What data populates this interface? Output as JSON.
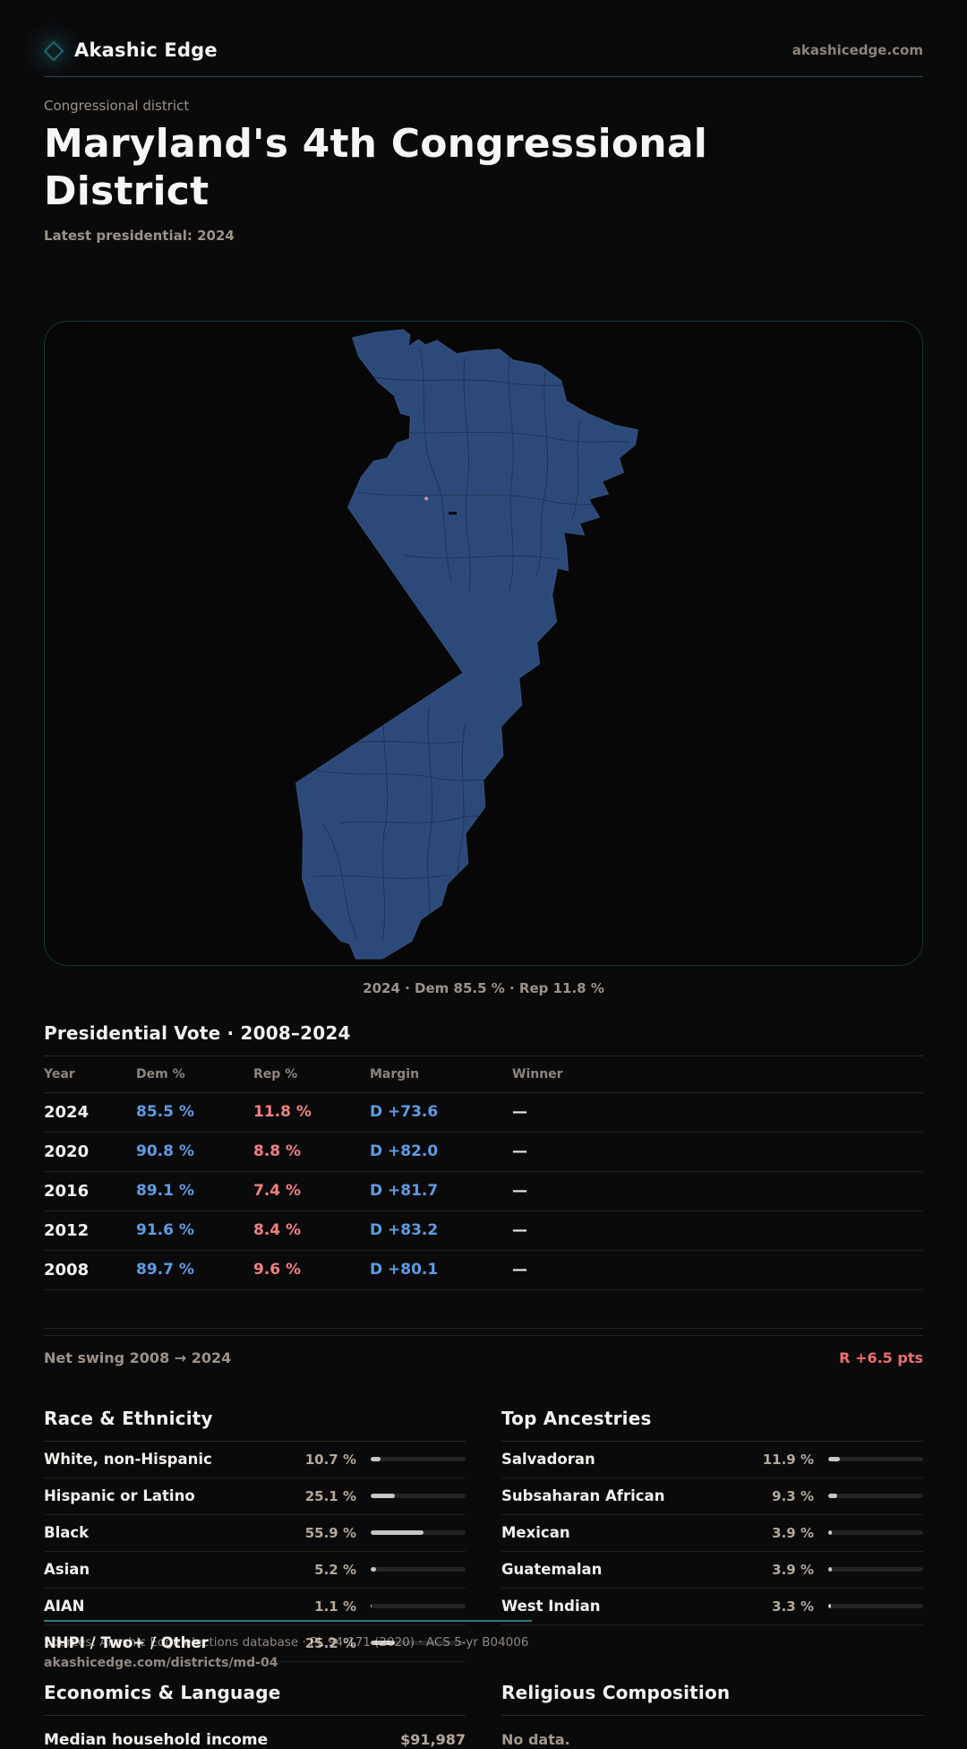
{
  "brand": {
    "name": "Akashic Edge",
    "domain": "akashicedge.com"
  },
  "page": {
    "kicker": "Congressional district",
    "title": "Maryland's 4th Congressional District",
    "subtitle": "Latest presidential: 2024",
    "map_caption": "2024 · Dem 85.5 % · Rep 11.8 %"
  },
  "colors": {
    "dem_blue": "#5f9ce4",
    "rep_red": "#f08082",
    "accent_teal": "#2b7278",
    "district_fill": "#2c4a79",
    "bar_fill": "#c9c6c1"
  },
  "vote": {
    "title": "Presidential Vote · 2008–2024",
    "columns": [
      "Year",
      "Dem %",
      "Rep %",
      "Margin",
      "Winner"
    ],
    "rows": [
      {
        "year": "2024",
        "dem": "85.5 %",
        "rep": "11.8 %",
        "margin": "D +73.6",
        "winner": "—"
      },
      {
        "year": "2020",
        "dem": "90.8 %",
        "rep": "8.8 %",
        "margin": "D +82.0",
        "winner": "—"
      },
      {
        "year": "2016",
        "dem": "89.1 %",
        "rep": "7.4 %",
        "margin": "D +81.7",
        "winner": "—"
      },
      {
        "year": "2012",
        "dem": "91.6 %",
        "rep": "8.4 %",
        "margin": "D +83.2",
        "winner": "—"
      },
      {
        "year": "2008",
        "dem": "89.7 %",
        "rep": "9.6 %",
        "margin": "D +80.1",
        "winner": "—"
      }
    ],
    "net_swing_label": "Net swing 2008 → 2024",
    "net_swing_value": "R +6.5 pts"
  },
  "race": {
    "title": "Race & Ethnicity",
    "rows": [
      {
        "label": "White, non-Hispanic",
        "value": "10.7 %",
        "pct": 10.7
      },
      {
        "label": "Hispanic or Latino",
        "value": "25.1 %",
        "pct": 25.1
      },
      {
        "label": "Black",
        "value": "55.9 %",
        "pct": 55.9
      },
      {
        "label": "Asian",
        "value": "5.2 %",
        "pct": 5.2
      },
      {
        "label": "AIAN",
        "value": "1.1 %",
        "pct": 1.1
      },
      {
        "label": "NHPI / Two+ / Other",
        "value": "25.2 %",
        "pct": 25.2
      }
    ]
  },
  "ancestries": {
    "title": "Top Ancestries",
    "rows": [
      {
        "label": "Salvadoran",
        "value": "11.9 %",
        "pct": 11.9
      },
      {
        "label": "Subsaharan African",
        "value": "9.3 %",
        "pct": 9.3
      },
      {
        "label": "Mexican",
        "value": "3.9 %",
        "pct": 3.9
      },
      {
        "label": "Guatemalan",
        "value": "3.9 %",
        "pct": 3.9
      },
      {
        "label": "West Indian",
        "value": "3.3 %",
        "pct": 3.3
      }
    ]
  },
  "economics": {
    "title": "Economics & Language",
    "rows": [
      {
        "label": "Median household income",
        "value": "$91,987"
      }
    ]
  },
  "religion": {
    "title": "Religious Composition",
    "empty": "No data."
  },
  "footer": {
    "sources": "Sources: Akashic Edge elections database · PL 94-171 (2020) · ACS 5-yr B04006",
    "link": "akashicedge.com/districts/md-04"
  }
}
